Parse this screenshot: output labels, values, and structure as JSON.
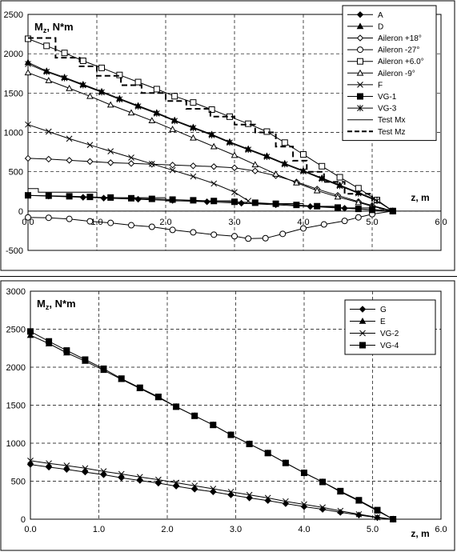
{
  "chart_data": [
    {
      "type": "line",
      "ylabel": "M",
      "ylabel_sub": "z",
      "ylabel_unit": ", N*m",
      "xlabel": "z, m",
      "xlim": [
        0,
        6
      ],
      "ylim": [
        -500,
        2500
      ],
      "xticks": [
        "0.0",
        "1.0",
        "2.0",
        "3.0",
        "4.0",
        "5.0",
        "6.0"
      ],
      "yticks": [
        "-500",
        "0",
        "500",
        "1000",
        "1500",
        "2000",
        "2500"
      ],
      "grid": "dashed",
      "legend_position": "top-right",
      "series": [
        {
          "name": "A",
          "marker": "diamond-filled",
          "line": "solid",
          "x": [
            0,
            0.3,
            0.8,
            1.1,
            1.6,
            2.1,
            2.6,
            3.1,
            3.6,
            4.1,
            4.6,
            5.0,
            5.3
          ],
          "y": [
            200,
            190,
            175,
            165,
            150,
            135,
            118,
            100,
            80,
            58,
            35,
            18,
            0
          ]
        },
        {
          "name": "D",
          "marker": "triangle-filled",
          "line": "solid",
          "x": [
            0,
            0.27,
            0.53,
            0.8,
            1.07,
            1.33,
            1.6,
            1.87,
            2.13,
            2.4,
            2.67,
            2.93,
            3.2,
            3.47,
            3.73,
            4.0,
            4.27,
            4.53,
            4.8,
            5.07,
            5.3
          ],
          "y": [
            1890,
            1780,
            1700,
            1610,
            1520,
            1430,
            1340,
            1250,
            1155,
            1065,
            975,
            880,
            790,
            700,
            605,
            515,
            420,
            330,
            235,
            140,
            0
          ]
        },
        {
          "name": "Aileron +18°",
          "marker": "diamond-open",
          "line": "solid",
          "x": [
            0,
            0.3,
            0.6,
            0.9,
            1.2,
            1.5,
            1.8,
            2.1,
            2.4,
            2.7,
            3.0,
            3.3,
            3.6,
            3.9,
            4.2,
            4.5,
            4.8,
            5.0,
            5.3
          ],
          "y": [
            670,
            660,
            645,
            630,
            615,
            605,
            595,
            585,
            575,
            565,
            550,
            510,
            450,
            370,
            280,
            200,
            120,
            70,
            0
          ]
        },
        {
          "name": "Aileron -27°",
          "marker": "circle-open",
          "line": "solid",
          "x": [
            0,
            0.3,
            0.6,
            0.9,
            1.2,
            1.5,
            1.8,
            2.1,
            2.4,
            2.7,
            3.0,
            3.2,
            3.45,
            3.7,
            4.0,
            4.3,
            4.6,
            4.8,
            5.0,
            5.3
          ],
          "y": [
            -80,
            -85,
            -100,
            -130,
            -150,
            -180,
            -200,
            -240,
            -270,
            -300,
            -320,
            -350,
            -345,
            -290,
            -220,
            -170,
            -125,
            -80,
            -40,
            0
          ]
        },
        {
          "name": "Aileron +6.0°",
          "marker": "square-open",
          "line": "solid",
          "x": [
            0,
            0.27,
            0.53,
            0.8,
            1.07,
            1.33,
            1.6,
            1.87,
            2.13,
            2.4,
            2.67,
            2.93,
            3.2,
            3.47,
            3.73,
            4.0,
            4.27,
            4.53,
            4.8,
            5.07,
            5.3
          ],
          "y": [
            2190,
            2100,
            2010,
            1910,
            1820,
            1730,
            1640,
            1550,
            1460,
            1380,
            1290,
            1200,
            1110,
            1010,
            870,
            720,
            570,
            430,
            290,
            140,
            0
          ]
        },
        {
          "name": "Aileron -9°",
          "marker": "triangle-open",
          "line": "solid",
          "x": [
            0,
            0.3,
            0.6,
            0.9,
            1.2,
            1.5,
            1.8,
            2.1,
            2.4,
            2.7,
            3.0,
            3.3,
            3.6,
            3.9,
            4.2,
            4.5,
            4.8,
            5.0,
            5.3
          ],
          "y": [
            1760,
            1660,
            1560,
            1460,
            1350,
            1250,
            1150,
            1040,
            930,
            820,
            710,
            590,
            470,
            360,
            260,
            180,
            110,
            60,
            0
          ]
        },
        {
          "name": "F",
          "marker": "x",
          "line": "solid",
          "x": [
            0,
            0.3,
            0.6,
            0.9,
            1.2,
            1.5,
            1.8,
            2.1,
            2.4,
            2.7,
            3.0,
            3.2
          ],
          "y": [
            1100,
            1010,
            920,
            840,
            760,
            680,
            600,
            520,
            440,
            350,
            240,
            130
          ]
        },
        {
          "name": "VG-1",
          "marker": "square-filled",
          "line": "solid",
          "x": [
            0,
            0.3,
            0.6,
            0.9,
            1.2,
            1.5,
            1.8,
            2.1,
            2.4,
            2.7,
            3.0,
            3.3,
            3.6,
            3.9,
            4.2,
            4.5,
            4.8,
            5.0,
            5.3
          ],
          "y": [
            200,
            195,
            188,
            180,
            172,
            163,
            155,
            146,
            137,
            128,
            118,
            106,
            93,
            78,
            62,
            45,
            28,
            15,
            0
          ]
        },
        {
          "name": "VG-3",
          "marker": "asterisk",
          "line": "solid",
          "x": [
            0,
            0.27,
            0.53,
            0.8,
            1.07,
            1.33,
            1.6,
            1.87,
            2.13,
            2.4,
            2.67,
            2.93,
            3.2,
            3.47,
            3.73,
            4.0,
            4.27,
            4.53,
            4.8,
            5.07,
            5.3
          ],
          "y": [
            1870,
            1770,
            1690,
            1600,
            1510,
            1420,
            1330,
            1240,
            1145,
            1055,
            965,
            870,
            780,
            690,
            595,
            505,
            410,
            320,
            225,
            130,
            0
          ]
        },
        {
          "name": "Test Mx",
          "marker": "none",
          "line": "solid-step",
          "x": [
            0,
            0.15,
            0.15,
            1.0,
            1.0,
            2.0,
            2.0,
            3.0,
            3.0,
            4.0,
            4.0,
            4.5,
            4.5,
            5.0,
            5.0,
            5.3
          ],
          "y": [
            285,
            285,
            240,
            240,
            170,
            170,
            130,
            130,
            95,
            95,
            60,
            60,
            40,
            40,
            20,
            0
          ]
        },
        {
          "name": "Test Mz",
          "marker": "none",
          "line": "dashed-step",
          "x": [
            0,
            0.4,
            0.4,
            0.75,
            0.75,
            1.0,
            1.0,
            1.35,
            1.35,
            1.65,
            1.65,
            2.0,
            2.0,
            2.3,
            2.3,
            2.65,
            2.65,
            3.0,
            3.0,
            3.3,
            3.3,
            3.6,
            3.6,
            3.85,
            3.85,
            4.05,
            4.05,
            4.3,
            4.3,
            4.6,
            4.6,
            5.0,
            5.0,
            5.3
          ],
          "y": [
            2200,
            2200,
            1950,
            1950,
            1840,
            1840,
            1720,
            1720,
            1600,
            1600,
            1500,
            1500,
            1400,
            1400,
            1300,
            1300,
            1200,
            1200,
            1100,
            1100,
            1000,
            1000,
            820,
            820,
            640,
            640,
            500,
            500,
            370,
            370,
            220,
            220,
            60,
            0
          ]
        }
      ]
    },
    {
      "type": "line",
      "ylabel": "M",
      "ylabel_sub": "z",
      "ylabel_unit": ", N*m",
      "xlabel": "z, m",
      "xlim": [
        0,
        6
      ],
      "ylim": [
        0,
        3000
      ],
      "xticks": [
        "0.0",
        "1.0",
        "2.0",
        "3.0",
        "4.0",
        "5.0",
        "6.0"
      ],
      "yticks": [
        "0",
        "500",
        "1000",
        "1500",
        "2000",
        "2500",
        "3000"
      ],
      "grid": "dashed",
      "legend_position": "top-right",
      "series": [
        {
          "name": "G",
          "marker": "diamond-filled",
          "line": "solid",
          "x": [
            0,
            0.27,
            0.53,
            0.8,
            1.07,
            1.33,
            1.6,
            1.87,
            2.13,
            2.4,
            2.67,
            2.93,
            3.2,
            3.47,
            3.73,
            4.0,
            4.27,
            4.53,
            4.8,
            5.07,
            5.3
          ],
          "y": [
            720,
            685,
            655,
            620,
            585,
            545,
            510,
            475,
            435,
            395,
            360,
            320,
            280,
            245,
            205,
            165,
            130,
            90,
            55,
            20,
            0
          ]
        },
        {
          "name": "E",
          "marker": "triangle-filled",
          "line": "solid",
          "x": [
            0,
            0.27,
            0.53,
            0.8,
            1.07,
            1.33,
            1.6,
            1.87,
            2.13,
            2.4,
            2.67,
            2.93,
            3.2,
            3.47,
            3.73,
            4.0,
            4.27,
            4.53,
            4.8,
            5.07,
            5.3
          ],
          "y": [
            2420,
            2310,
            2190,
            2080,
            1960,
            1840,
            1720,
            1600,
            1480,
            1360,
            1240,
            1110,
            990,
            870,
            740,
            610,
            490,
            360,
            240,
            110,
            0
          ]
        },
        {
          "name": "VG-2",
          "marker": "x",
          "line": "solid",
          "x": [
            0,
            0.27,
            0.53,
            0.8,
            1.07,
            1.33,
            1.6,
            1.87,
            2.13,
            2.4,
            2.67,
            2.93,
            3.2,
            3.47,
            3.73,
            4.0,
            4.27,
            4.53,
            4.8,
            5.07,
            5.3
          ],
          "y": [
            770,
            735,
            705,
            670,
            630,
            595,
            555,
            520,
            480,
            440,
            400,
            360,
            320,
            280,
            235,
            195,
            155,
            110,
            65,
            25,
            0
          ]
        },
        {
          "name": "VG-4",
          "marker": "square-filled",
          "line": "solid",
          "x": [
            0,
            0.27,
            0.53,
            0.8,
            1.07,
            1.33,
            1.6,
            1.87,
            2.13,
            2.4,
            2.67,
            2.93,
            3.2,
            3.47,
            3.73,
            4.0,
            4.27,
            4.53,
            4.8,
            5.07,
            5.3
          ],
          "y": [
            2470,
            2340,
            2220,
            2100,
            1980,
            1850,
            1730,
            1610,
            1480,
            1360,
            1240,
            1110,
            990,
            870,
            740,
            610,
            490,
            370,
            250,
            120,
            0
          ]
        }
      ]
    }
  ]
}
